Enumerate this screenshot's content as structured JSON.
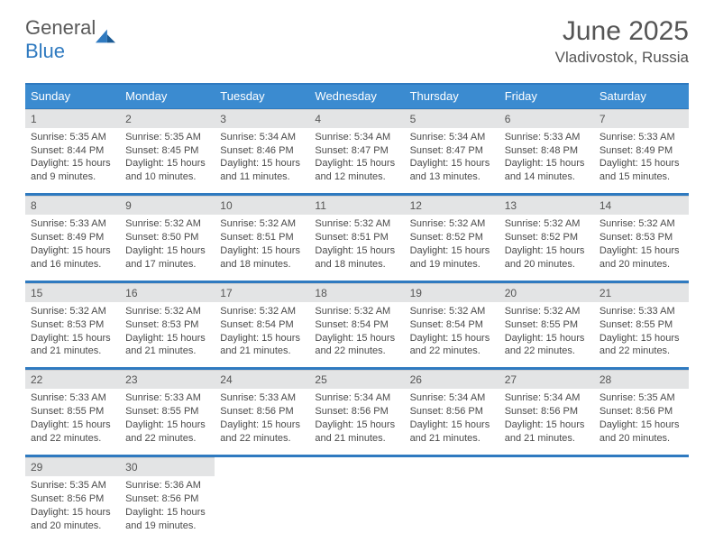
{
  "logo": {
    "name": "General",
    "name2": "Blue"
  },
  "title": "June 2025",
  "location": "Vladivostok, Russia",
  "colors": {
    "header_bg": "#3b8bd0",
    "header_text": "#ffffff",
    "daynum_bg": "#e3e4e5",
    "border": "#2f7ac0",
    "text": "#4a4a4a",
    "logo_blue": "#2f7ac0"
  },
  "day_headers": [
    "Sunday",
    "Monday",
    "Tuesday",
    "Wednesday",
    "Thursday",
    "Friday",
    "Saturday"
  ],
  "weeks": [
    [
      {
        "n": "1",
        "sr": "Sunrise: 5:35 AM",
        "ss": "Sunset: 8:44 PM",
        "dl": "Daylight: 15 hours and 9 minutes."
      },
      {
        "n": "2",
        "sr": "Sunrise: 5:35 AM",
        "ss": "Sunset: 8:45 PM",
        "dl": "Daylight: 15 hours and 10 minutes."
      },
      {
        "n": "3",
        "sr": "Sunrise: 5:34 AM",
        "ss": "Sunset: 8:46 PM",
        "dl": "Daylight: 15 hours and 11 minutes."
      },
      {
        "n": "4",
        "sr": "Sunrise: 5:34 AM",
        "ss": "Sunset: 8:47 PM",
        "dl": "Daylight: 15 hours and 12 minutes."
      },
      {
        "n": "5",
        "sr": "Sunrise: 5:34 AM",
        "ss": "Sunset: 8:47 PM",
        "dl": "Daylight: 15 hours and 13 minutes."
      },
      {
        "n": "6",
        "sr": "Sunrise: 5:33 AM",
        "ss": "Sunset: 8:48 PM",
        "dl": "Daylight: 15 hours and 14 minutes."
      },
      {
        "n": "7",
        "sr": "Sunrise: 5:33 AM",
        "ss": "Sunset: 8:49 PM",
        "dl": "Daylight: 15 hours and 15 minutes."
      }
    ],
    [
      {
        "n": "8",
        "sr": "Sunrise: 5:33 AM",
        "ss": "Sunset: 8:49 PM",
        "dl": "Daylight: 15 hours and 16 minutes."
      },
      {
        "n": "9",
        "sr": "Sunrise: 5:32 AM",
        "ss": "Sunset: 8:50 PM",
        "dl": "Daylight: 15 hours and 17 minutes."
      },
      {
        "n": "10",
        "sr": "Sunrise: 5:32 AM",
        "ss": "Sunset: 8:51 PM",
        "dl": "Daylight: 15 hours and 18 minutes."
      },
      {
        "n": "11",
        "sr": "Sunrise: 5:32 AM",
        "ss": "Sunset: 8:51 PM",
        "dl": "Daylight: 15 hours and 18 minutes."
      },
      {
        "n": "12",
        "sr": "Sunrise: 5:32 AM",
        "ss": "Sunset: 8:52 PM",
        "dl": "Daylight: 15 hours and 19 minutes."
      },
      {
        "n": "13",
        "sr": "Sunrise: 5:32 AM",
        "ss": "Sunset: 8:52 PM",
        "dl": "Daylight: 15 hours and 20 minutes."
      },
      {
        "n": "14",
        "sr": "Sunrise: 5:32 AM",
        "ss": "Sunset: 8:53 PM",
        "dl": "Daylight: 15 hours and 20 minutes."
      }
    ],
    [
      {
        "n": "15",
        "sr": "Sunrise: 5:32 AM",
        "ss": "Sunset: 8:53 PM",
        "dl": "Daylight: 15 hours and 21 minutes."
      },
      {
        "n": "16",
        "sr": "Sunrise: 5:32 AM",
        "ss": "Sunset: 8:53 PM",
        "dl": "Daylight: 15 hours and 21 minutes."
      },
      {
        "n": "17",
        "sr": "Sunrise: 5:32 AM",
        "ss": "Sunset: 8:54 PM",
        "dl": "Daylight: 15 hours and 21 minutes."
      },
      {
        "n": "18",
        "sr": "Sunrise: 5:32 AM",
        "ss": "Sunset: 8:54 PM",
        "dl": "Daylight: 15 hours and 22 minutes."
      },
      {
        "n": "19",
        "sr": "Sunrise: 5:32 AM",
        "ss": "Sunset: 8:54 PM",
        "dl": "Daylight: 15 hours and 22 minutes."
      },
      {
        "n": "20",
        "sr": "Sunrise: 5:32 AM",
        "ss": "Sunset: 8:55 PM",
        "dl": "Daylight: 15 hours and 22 minutes."
      },
      {
        "n": "21",
        "sr": "Sunrise: 5:33 AM",
        "ss": "Sunset: 8:55 PM",
        "dl": "Daylight: 15 hours and 22 minutes."
      }
    ],
    [
      {
        "n": "22",
        "sr": "Sunrise: 5:33 AM",
        "ss": "Sunset: 8:55 PM",
        "dl": "Daylight: 15 hours and 22 minutes."
      },
      {
        "n": "23",
        "sr": "Sunrise: 5:33 AM",
        "ss": "Sunset: 8:55 PM",
        "dl": "Daylight: 15 hours and 22 minutes."
      },
      {
        "n": "24",
        "sr": "Sunrise: 5:33 AM",
        "ss": "Sunset: 8:56 PM",
        "dl": "Daylight: 15 hours and 22 minutes."
      },
      {
        "n": "25",
        "sr": "Sunrise: 5:34 AM",
        "ss": "Sunset: 8:56 PM",
        "dl": "Daylight: 15 hours and 21 minutes."
      },
      {
        "n": "26",
        "sr": "Sunrise: 5:34 AM",
        "ss": "Sunset: 8:56 PM",
        "dl": "Daylight: 15 hours and 21 minutes."
      },
      {
        "n": "27",
        "sr": "Sunrise: 5:34 AM",
        "ss": "Sunset: 8:56 PM",
        "dl": "Daylight: 15 hours and 21 minutes."
      },
      {
        "n": "28",
        "sr": "Sunrise: 5:35 AM",
        "ss": "Sunset: 8:56 PM",
        "dl": "Daylight: 15 hours and 20 minutes."
      }
    ],
    [
      {
        "n": "29",
        "sr": "Sunrise: 5:35 AM",
        "ss": "Sunset: 8:56 PM",
        "dl": "Daylight: 15 hours and 20 minutes."
      },
      {
        "n": "30",
        "sr": "Sunrise: 5:36 AM",
        "ss": "Sunset: 8:56 PM",
        "dl": "Daylight: 15 hours and 19 minutes."
      },
      null,
      null,
      null,
      null,
      null
    ]
  ]
}
